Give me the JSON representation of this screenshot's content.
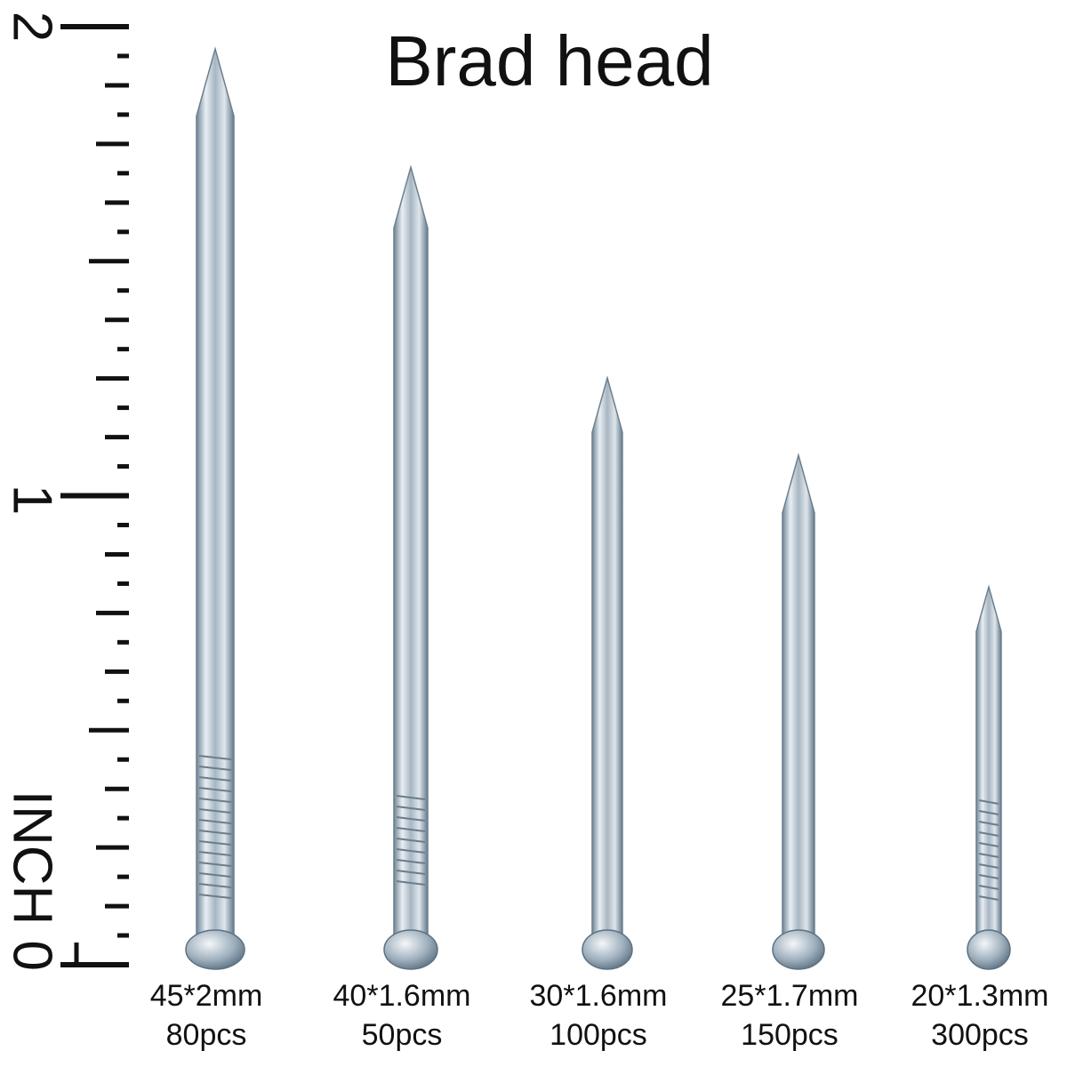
{
  "title": "Brad head",
  "ruler": {
    "top_label": "2",
    "middle_label": "1",
    "unit_label": "INCH 0"
  },
  "nails": [
    {
      "size": "45*2mm",
      "count": "80pcs"
    },
    {
      "size": "40*1.6mm",
      "count": "50pcs"
    },
    {
      "size": "30*1.6mm",
      "count": "100pcs"
    },
    {
      "size": "25*1.7mm",
      "count": "150pcs"
    },
    {
      "size": "20*1.3mm",
      "count": "300pcs"
    }
  ]
}
